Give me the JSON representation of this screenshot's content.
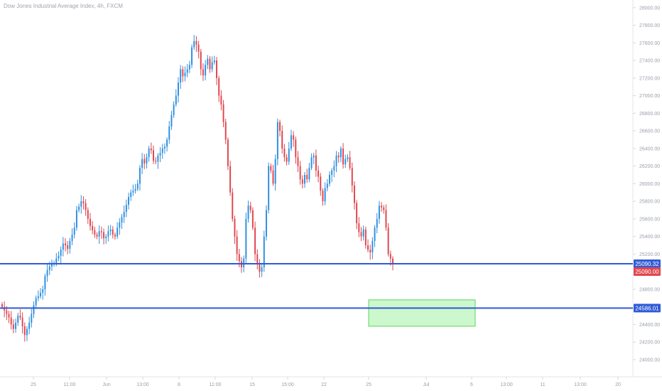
{
  "title": "Dow Jones Industrial Average Index, 4h, FXCM",
  "chart_data": {
    "type": "candlestick",
    "title": "Dow Jones Industrial Average Index, 4h, FXCM",
    "y_axis": {
      "ticks": [
        28000,
        27800,
        27600,
        27400,
        27200,
        27000,
        26800,
        26600,
        26400,
        26200,
        26000,
        25800,
        25600,
        25400,
        25200,
        24800,
        24400,
        24200,
        24000
      ],
      "tick_labels": [
        "28000.00",
        "27800.00",
        "27600.00",
        "27400.00",
        "27200.00",
        "27000.00",
        "26800.00",
        "26600.00",
        "26400.00",
        "26200.00",
        "26000.00",
        "25800.00",
        "25600.00",
        "25400.00",
        "25200.00",
        "24800.00",
        "24400.00",
        "24200.00",
        "24000.00"
      ],
      "ylim": [
        23900,
        28050
      ],
      "position": "right"
    },
    "x_axis": {
      "tick_labels": [
        "25",
        "11:00",
        "Jun",
        "13:00",
        "8",
        "11:00",
        "15",
        "15:00",
        "22",
        "25",
        "Jul",
        "6",
        "13:00",
        "11",
        "13:00",
        "20"
      ]
    },
    "horizontal_lines": [
      {
        "value": 25090.32,
        "label": "25090.32",
        "color": "#2f5bd6"
      },
      {
        "value": 24586.01,
        "label": "24586.01",
        "color": "#2f5bd6"
      }
    ],
    "last_price": {
      "value": 25090.0,
      "label": "25090.00",
      "color": "#e0464e"
    },
    "zone": {
      "from_value": 24380,
      "to_value": 24680,
      "color": "#90ee90"
    },
    "colors": {
      "up": "#2f8fe0",
      "down": "#e0464e"
    },
    "candle_closes": [
      24600,
      24560,
      24520,
      24480,
      24400,
      24350,
      24420,
      24500,
      24480,
      24380,
      24280,
      24350,
      24420,
      24520,
      24620,
      24700,
      24720,
      24760,
      24800,
      24950,
      25020,
      25060,
      25100,
      25100,
      25150,
      25180,
      25250,
      25320,
      25300,
      25260,
      25350,
      25420,
      25500,
      25700,
      25740,
      25800,
      25780,
      25700,
      25600,
      25520,
      25470,
      25420,
      25400,
      25460,
      25450,
      25380,
      25400,
      25460,
      25480,
      25420,
      25400,
      25500,
      25560,
      25620,
      25680,
      25760,
      25850,
      25900,
      25920,
      25940,
      26000,
      26180,
      26280,
      26230,
      26300,
      26400,
      26380,
      26260,
      26250,
      26320,
      26350,
      26400,
      26420,
      26500,
      26650,
      26780,
      26900,
      27000,
      27150,
      27300,
      27220,
      27260,
      27300,
      27350,
      27550,
      27620,
      27580,
      27500,
      27300,
      27230,
      27350,
      27420,
      27300,
      27380,
      27400,
      27200,
      27000,
      26900,
      26700,
      26500,
      26200,
      25900,
      25600,
      25400,
      25200,
      25120,
      25050,
      25150,
      25600,
      25750,
      25700,
      25500,
      25200,
      25100,
      25000,
      25050,
      25400,
      25700,
      26200,
      26150,
      26000,
      26280,
      26700,
      26600,
      26400,
      26300,
      26250,
      26400,
      26550,
      26500,
      26300,
      26200,
      26050,
      26000,
      26100,
      26050,
      26180,
      26300,
      26320,
      26150,
      26080,
      25920,
      25800,
      25950,
      26000,
      26100,
      26150,
      26200,
      26320,
      26300,
      26400,
      26220,
      26280,
      26300,
      26180,
      25980,
      25780,
      25550,
      25450,
      25400,
      25480,
      25300,
      25250,
      25220,
      25350,
      25500,
      25600,
      25750,
      25730,
      25700,
      25500,
      25200,
      25150,
      25090
    ]
  }
}
